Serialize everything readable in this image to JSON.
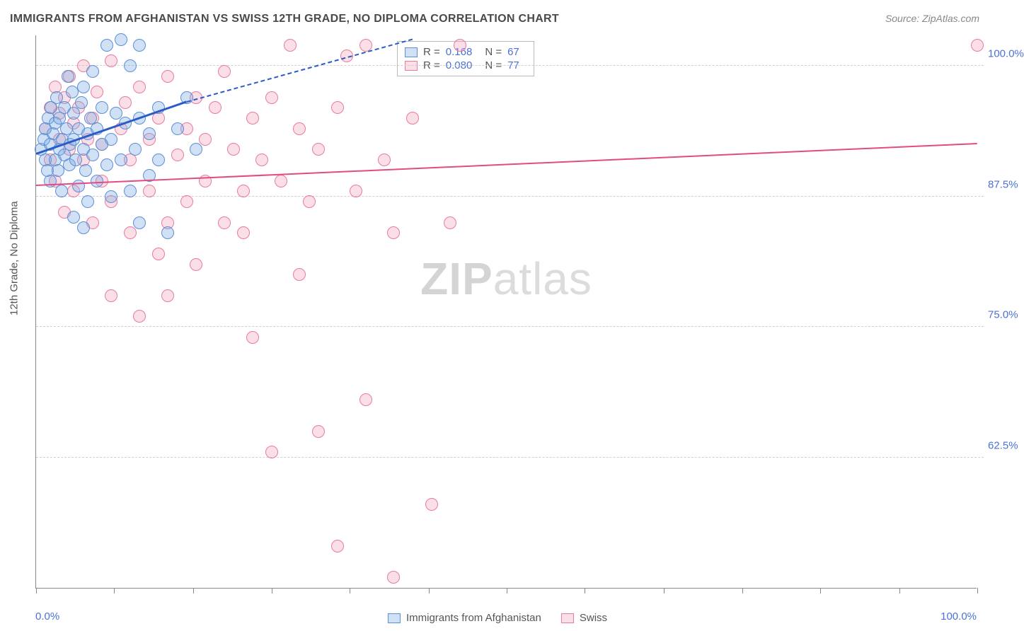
{
  "title": "IMMIGRANTS FROM AFGHANISTAN VS SWISS 12TH GRADE, NO DIPLOMA CORRELATION CHART",
  "source": "Source: ZipAtlas.com",
  "y_axis_title": "12th Grade, No Diploma",
  "watermark_a": "ZIP",
  "watermark_b": "atlas",
  "chart": {
    "type": "scatter",
    "xlim": [
      0,
      100
    ],
    "ylim": [
      50,
      103
    ],
    "x_tick_positions": [
      0,
      8.3,
      16.7,
      25,
      33.3,
      41.7,
      50,
      58.3,
      66.7,
      75,
      83.3,
      91.7,
      100
    ],
    "y_gridlines": [
      62.5,
      75,
      87.5,
      100
    ],
    "y_tick_labels": [
      "62.5%",
      "75.0%",
      "87.5%",
      "100.0%"
    ],
    "x_label_min": "0.0%",
    "x_label_max": "100.0%",
    "background_color": "#ffffff",
    "grid_color": "#d0d0d0",
    "series": {
      "afghan": {
        "label": "Immigrants from Afghanistan",
        "fill": "rgba(120,170,225,0.35)",
        "stroke": "#5b8fd6",
        "trend_color": "#2a5bc7",
        "r": "0.168",
        "n": "67",
        "trend": {
          "x1": 0,
          "y1": 91.5,
          "x2": 16,
          "y2": 96.5,
          "dash_to_x": 40,
          "dash_to_y": 102.5
        },
        "points": [
          [
            0.5,
            92
          ],
          [
            0.8,
            93
          ],
          [
            1,
            91
          ],
          [
            1,
            94
          ],
          [
            1.2,
            90
          ],
          [
            1.3,
            95
          ],
          [
            1.5,
            92.5
          ],
          [
            1.5,
            89
          ],
          [
            1.6,
            96
          ],
          [
            1.8,
            93.5
          ],
          [
            2,
            91
          ],
          [
            2,
            94.5
          ],
          [
            2.2,
            97
          ],
          [
            2.3,
            90
          ],
          [
            2.5,
            92
          ],
          [
            2.5,
            95
          ],
          [
            2.7,
            88
          ],
          [
            2.8,
            93
          ],
          [
            3,
            91.5
          ],
          [
            3,
            96
          ],
          [
            3.2,
            94
          ],
          [
            3.4,
            99
          ],
          [
            3.5,
            90.5
          ],
          [
            3.6,
            92.5
          ],
          [
            3.8,
            97.5
          ],
          [
            4,
            93
          ],
          [
            4,
            95.5
          ],
          [
            4.2,
            91
          ],
          [
            4.5,
            88.5
          ],
          [
            4.5,
            94
          ],
          [
            4.8,
            96.5
          ],
          [
            5,
            92
          ],
          [
            5,
            98
          ],
          [
            5.3,
            90
          ],
          [
            5.5,
            93.5
          ],
          [
            5.5,
            87
          ],
          [
            5.8,
            95
          ],
          [
            6,
            91.5
          ],
          [
            6,
            99.5
          ],
          [
            6.5,
            94
          ],
          [
            6.5,
            89
          ],
          [
            7,
            92.5
          ],
          [
            7,
            96
          ],
          [
            7.5,
            102
          ],
          [
            7.5,
            90.5
          ],
          [
            8,
            93
          ],
          [
            8,
            87.5
          ],
          [
            8.5,
            95.5
          ],
          [
            9,
            102.5
          ],
          [
            9,
            91
          ],
          [
            9.5,
            94.5
          ],
          [
            10,
            88
          ],
          [
            10,
            100
          ],
          [
            10.5,
            92
          ],
          [
            11,
            95
          ],
          [
            11,
            85
          ],
          [
            11,
            102
          ],
          [
            12,
            93.5
          ],
          [
            12,
            89.5
          ],
          [
            13,
            96
          ],
          [
            13,
            91
          ],
          [
            14,
            84
          ],
          [
            15,
            94
          ],
          [
            16,
            97
          ],
          [
            17,
            92
          ],
          [
            4,
            85.5
          ],
          [
            5,
            84.5
          ]
        ]
      },
      "swiss": {
        "label": "Swiss",
        "fill": "rgba(240,150,175,0.30)",
        "stroke": "#e87ba0",
        "trend_color": "#e34b82",
        "r": "0.080",
        "n": "77",
        "trend": {
          "x1": 0,
          "y1": 88.5,
          "x2": 100,
          "y2": 92.5
        },
        "points": [
          [
            1,
            94
          ],
          [
            1.5,
            96
          ],
          [
            1.5,
            91
          ],
          [
            2,
            98
          ],
          [
            2,
            89
          ],
          [
            2.5,
            93
          ],
          [
            2.5,
            95.5
          ],
          [
            3,
            97
          ],
          [
            3,
            86
          ],
          [
            3.5,
            92
          ],
          [
            3.5,
            99
          ],
          [
            4,
            94.5
          ],
          [
            4,
            88
          ],
          [
            4.5,
            96
          ],
          [
            5,
            91
          ],
          [
            5,
            100
          ],
          [
            5.5,
            93
          ],
          [
            6,
            95
          ],
          [
            6,
            85
          ],
          [
            6.5,
            97.5
          ],
          [
            7,
            89
          ],
          [
            7,
            92.5
          ],
          [
            8,
            100.5
          ],
          [
            8,
            87
          ],
          [
            8,
            78
          ],
          [
            9,
            94
          ],
          [
            9.5,
            96.5
          ],
          [
            10,
            91
          ],
          [
            10,
            84
          ],
          [
            11,
            98
          ],
          [
            11,
            76
          ],
          [
            12,
            93
          ],
          [
            12,
            88
          ],
          [
            13,
            95
          ],
          [
            13,
            82
          ],
          [
            14,
            99
          ],
          [
            14,
            85
          ],
          [
            14,
            78
          ],
          [
            15,
            91.5
          ],
          [
            16,
            94
          ],
          [
            16,
            87
          ],
          [
            17,
            97
          ],
          [
            17,
            81
          ],
          [
            18,
            93
          ],
          [
            18,
            89
          ],
          [
            19,
            96
          ],
          [
            20,
            85
          ],
          [
            20,
            99.5
          ],
          [
            21,
            92
          ],
          [
            22,
            88
          ],
          [
            22,
            84
          ],
          [
            23,
            95
          ],
          [
            23,
            74
          ],
          [
            24,
            91
          ],
          [
            25,
            97
          ],
          [
            25,
            63
          ],
          [
            26,
            89
          ],
          [
            27,
            102
          ],
          [
            28,
            94
          ],
          [
            28,
            80
          ],
          [
            29,
            87
          ],
          [
            30,
            92
          ],
          [
            30,
            65
          ],
          [
            32,
            96
          ],
          [
            32,
            54
          ],
          [
            33,
            101
          ],
          [
            34,
            88
          ],
          [
            35,
            102
          ],
          [
            35,
            68
          ],
          [
            37,
            91
          ],
          [
            38,
            84
          ],
          [
            38,
            51
          ],
          [
            40,
            95
          ],
          [
            42,
            58
          ],
          [
            44,
            85
          ],
          [
            45,
            102
          ],
          [
            100,
            102
          ]
        ]
      }
    }
  },
  "legend_top": {
    "rows": [
      {
        "series": "afghan",
        "r_label": "R =",
        "n_label": "N ="
      },
      {
        "series": "swiss",
        "r_label": "R =",
        "n_label": "N ="
      }
    ]
  }
}
